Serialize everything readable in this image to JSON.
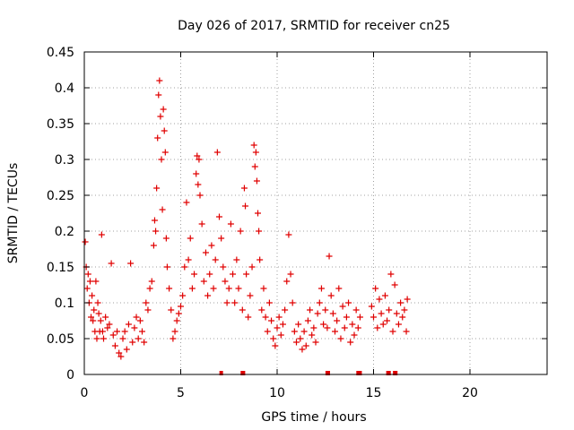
{
  "chart_data": {
    "type": "scatter",
    "title": "Day 026 of 2017, SRMTID for receiver cn25",
    "xlabel": "GPS time / hours",
    "ylabel": "SRMTID / TECUs",
    "xlim": [
      0,
      24
    ],
    "ylim": [
      0,
      0.45
    ],
    "xticks": [
      0,
      5,
      10,
      15,
      20
    ],
    "xtick_labels": [
      "0",
      "5",
      "10",
      "15",
      "20"
    ],
    "yticks": [
      0,
      0.05,
      0.1,
      0.15,
      0.2,
      0.25,
      0.3,
      0.35,
      0.4,
      0.45
    ],
    "ytick_labels": [
      "0",
      "0.05",
      "0.1",
      "0.15",
      "0.2",
      "0.25",
      "0.3",
      "0.35",
      "0.4",
      "0.45"
    ],
    "grid": true,
    "marker": "+",
    "series": [
      {
        "name": "SRMTID",
        "color": "#e00000",
        "points": [
          [
            0.05,
            0.185
          ],
          [
            0.1,
            0.15
          ],
          [
            0.15,
            0.12
          ],
          [
            0.2,
            0.14
          ],
          [
            0.25,
            0.1
          ],
          [
            0.3,
            0.13
          ],
          [
            0.35,
            0.08
          ],
          [
            0.4,
            0.11
          ],
          [
            0.45,
            0.075
          ],
          [
            0.5,
            0.09
          ],
          [
            0.55,
            0.06
          ],
          [
            0.6,
            0.13
          ],
          [
            0.65,
            0.05
          ],
          [
            0.7,
            0.1
          ],
          [
            0.75,
            0.085
          ],
          [
            0.8,
            0.06
          ],
          [
            0.85,
            0.075
          ],
          [
            0.9,
            0.195
          ],
          [
            0.95,
            0.06
          ],
          [
            1.0,
            0.05
          ],
          [
            1.1,
            0.08
          ],
          [
            1.2,
            0.065
          ],
          [
            1.3,
            0.07
          ],
          [
            1.4,
            0.155
          ],
          [
            1.5,
            0.055
          ],
          [
            1.6,
            0.04
          ],
          [
            1.7,
            0.06
          ],
          [
            1.8,
            0.03
          ],
          [
            1.9,
            0.025
          ],
          [
            2.0,
            0.05
          ],
          [
            2.1,
            0.06
          ],
          [
            2.2,
            0.035
          ],
          [
            2.3,
            0.07
          ],
          [
            2.4,
            0.155
          ],
          [
            2.5,
            0.045
          ],
          [
            2.6,
            0.065
          ],
          [
            2.7,
            0.08
          ],
          [
            2.8,
            0.05
          ],
          [
            2.9,
            0.075
          ],
          [
            3.0,
            0.06
          ],
          [
            3.1,
            0.045
          ],
          [
            3.2,
            0.1
          ],
          [
            3.3,
            0.09
          ],
          [
            3.4,
            0.12
          ],
          [
            3.5,
            0.13
          ],
          [
            3.6,
            0.18
          ],
          [
            3.65,
            0.215
          ],
          [
            3.7,
            0.2
          ],
          [
            3.75,
            0.26
          ],
          [
            3.8,
            0.33
          ],
          [
            3.85,
            0.39
          ],
          [
            3.9,
            0.41
          ],
          [
            3.95,
            0.36
          ],
          [
            4.0,
            0.3
          ],
          [
            4.05,
            0.23
          ],
          [
            4.1,
            0.37
          ],
          [
            4.15,
            0.34
          ],
          [
            4.2,
            0.31
          ],
          [
            4.25,
            0.19
          ],
          [
            4.3,
            0.15
          ],
          [
            4.4,
            0.12
          ],
          [
            4.5,
            0.09
          ],
          [
            4.6,
            0.05
          ],
          [
            4.7,
            0.06
          ],
          [
            4.8,
            0.075
          ],
          [
            4.9,
            0.085
          ],
          [
            5.0,
            0.095
          ],
          [
            5.1,
            0.11
          ],
          [
            5.2,
            0.15
          ],
          [
            5.3,
            0.24
          ],
          [
            5.4,
            0.16
          ],
          [
            5.5,
            0.19
          ],
          [
            5.6,
            0.12
          ],
          [
            5.7,
            0.14
          ],
          [
            5.8,
            0.28
          ],
          [
            5.85,
            0.305
          ],
          [
            5.9,
            0.265
          ],
          [
            5.95,
            0.3
          ],
          [
            6.0,
            0.25
          ],
          [
            6.1,
            0.21
          ],
          [
            6.2,
            0.13
          ],
          [
            6.3,
            0.17
          ],
          [
            6.4,
            0.11
          ],
          [
            6.5,
            0.14
          ],
          [
            6.6,
            0.18
          ],
          [
            6.7,
            0.12
          ],
          [
            6.8,
            0.16
          ],
          [
            6.9,
            0.31
          ],
          [
            7.0,
            0.22
          ],
          [
            7.1,
            0.19
          ],
          [
            7.2,
            0.15
          ],
          [
            7.3,
            0.13
          ],
          [
            7.4,
            0.1
          ],
          [
            7.5,
            0.12
          ],
          [
            7.6,
            0.21
          ],
          [
            7.7,
            0.14
          ],
          [
            7.8,
            0.1
          ],
          [
            7.9,
            0.16
          ],
          [
            8.0,
            0.12
          ],
          [
            8.1,
            0.2
          ],
          [
            8.2,
            0.09
          ],
          [
            8.3,
            0.26
          ],
          [
            8.35,
            0.235
          ],
          [
            8.4,
            0.14
          ],
          [
            8.5,
            0.08
          ],
          [
            8.6,
            0.11
          ],
          [
            8.7,
            0.15
          ],
          [
            8.8,
            0.32
          ],
          [
            8.85,
            0.29
          ],
          [
            8.9,
            0.31
          ],
          [
            8.95,
            0.27
          ],
          [
            9.0,
            0.225
          ],
          [
            9.05,
            0.2
          ],
          [
            9.1,
            0.16
          ],
          [
            9.2,
            0.09
          ],
          [
            9.3,
            0.12
          ],
          [
            9.4,
            0.08
          ],
          [
            9.5,
            0.06
          ],
          [
            9.6,
            0.1
          ],
          [
            9.7,
            0.075
          ],
          [
            9.8,
            0.05
          ],
          [
            9.9,
            0.04
          ],
          [
            10.0,
            0.065
          ],
          [
            10.1,
            0.08
          ],
          [
            10.2,
            0.055
          ],
          [
            10.3,
            0.07
          ],
          [
            10.4,
            0.09
          ],
          [
            10.5,
            0.13
          ],
          [
            10.6,
            0.195
          ],
          [
            10.7,
            0.14
          ],
          [
            10.8,
            0.1
          ],
          [
            10.9,
            0.06
          ],
          [
            11.0,
            0.045
          ],
          [
            11.1,
            0.07
          ],
          [
            11.2,
            0.05
          ],
          [
            11.3,
            0.035
          ],
          [
            11.4,
            0.06
          ],
          [
            11.5,
            0.04
          ],
          [
            11.6,
            0.075
          ],
          [
            11.7,
            0.09
          ],
          [
            11.8,
            0.055
          ],
          [
            11.9,
            0.065
          ],
          [
            12.0,
            0.045
          ],
          [
            12.1,
            0.085
          ],
          [
            12.2,
            0.1
          ],
          [
            12.3,
            0.12
          ],
          [
            12.4,
            0.07
          ],
          [
            12.5,
            0.09
          ],
          [
            12.6,
            0.065
          ],
          [
            12.7,
            0.165
          ],
          [
            12.8,
            0.11
          ],
          [
            12.9,
            0.085
          ],
          [
            13.0,
            0.06
          ],
          [
            13.1,
            0.075
          ],
          [
            13.2,
            0.12
          ],
          [
            13.3,
            0.05
          ],
          [
            13.4,
            0.095
          ],
          [
            13.5,
            0.065
          ],
          [
            13.6,
            0.08
          ],
          [
            13.7,
            0.1
          ],
          [
            13.8,
            0.045
          ],
          [
            13.9,
            0.07
          ],
          [
            14.0,
            0.055
          ],
          [
            14.1,
            0.09
          ],
          [
            14.2,
            0.065
          ],
          [
            14.3,
            0.08
          ],
          [
            14.9,
            0.095
          ],
          [
            15.0,
            0.08
          ],
          [
            15.1,
            0.12
          ],
          [
            15.2,
            0.065
          ],
          [
            15.3,
            0.105
          ],
          [
            15.4,
            0.085
          ],
          [
            15.5,
            0.07
          ],
          [
            15.6,
            0.11
          ],
          [
            15.7,
            0.075
          ],
          [
            15.8,
            0.09
          ],
          [
            15.9,
            0.14
          ],
          [
            16.0,
            0.06
          ],
          [
            16.1,
            0.125
          ],
          [
            16.2,
            0.085
          ],
          [
            16.3,
            0.07
          ],
          [
            16.4,
            0.1
          ],
          [
            16.5,
            0.08
          ],
          [
            16.6,
            0.09
          ],
          [
            16.7,
            0.06
          ],
          [
            16.75,
            0.105
          ]
        ]
      }
    ],
    "baseline_markers_x": [
      7.1,
      8.2,
      8.25,
      12.6,
      12.65,
      14.2,
      14.25,
      14.3,
      15.75,
      15.8,
      16.1,
      16.15
    ]
  }
}
